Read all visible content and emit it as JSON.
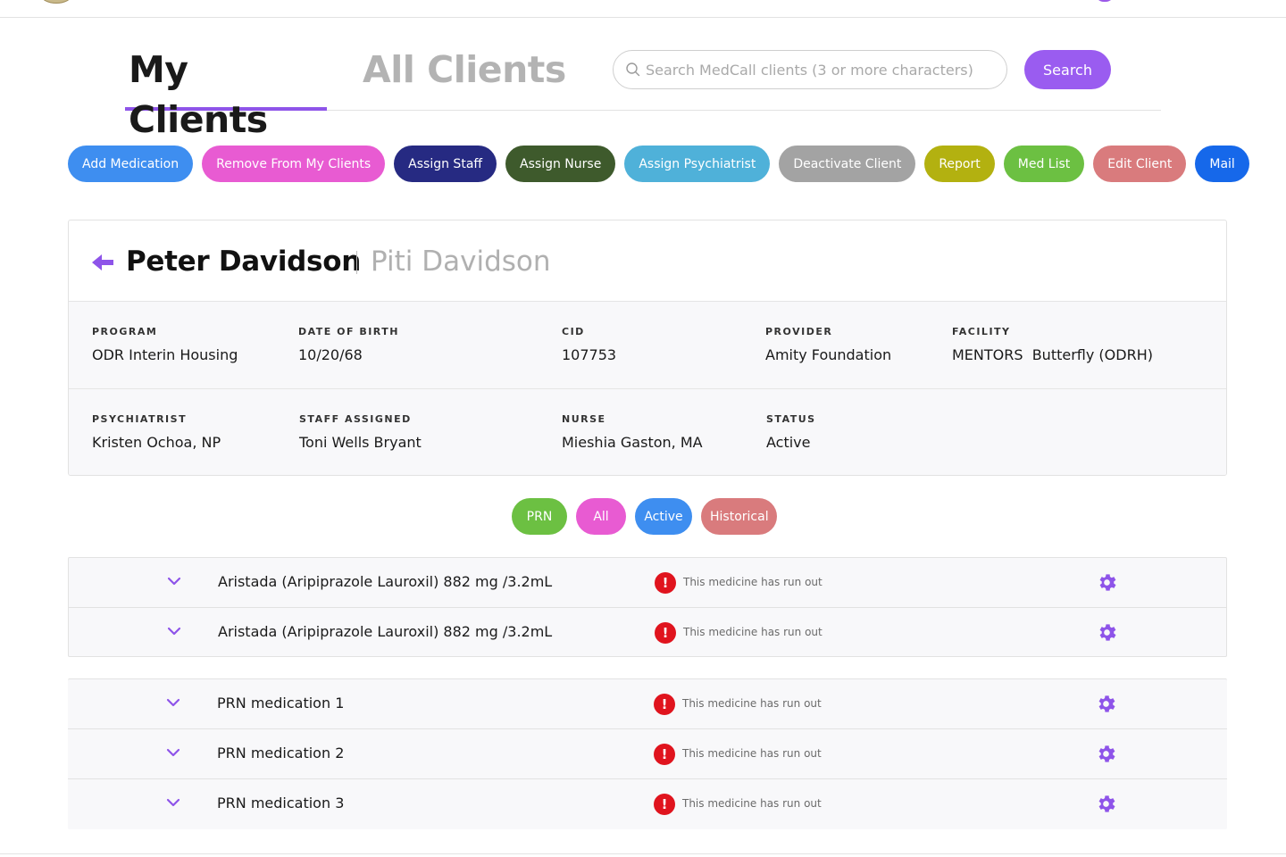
{
  "tabs": {
    "my_clients": "My Clients",
    "all_clients": "All Clients"
  },
  "search": {
    "placeholder": "Search MedCall clients (3 or more characters)",
    "button": "Search"
  },
  "actions": [
    {
      "label": "Add Medication",
      "color": "#3e8ef0"
    },
    {
      "label": "Remove From My Clients",
      "color": "#e85bd2"
    },
    {
      "label": "Assign Staff",
      "color": "#262a82"
    },
    {
      "label": "Assign Nurse",
      "color": "#3e5a2c"
    },
    {
      "label": "Assign Psychiatrist",
      "color": "#4fb1d9"
    },
    {
      "label": "Deactivate Client",
      "color": "#a3a3a3"
    },
    {
      "label": "Report",
      "color": "#b3b110"
    },
    {
      "label": "Med List",
      "color": "#6cc042"
    },
    {
      "label": "Edit Client",
      "color": "#d97b7d"
    },
    {
      "label": "Mail",
      "color": "#1668ea"
    }
  ],
  "client": {
    "name": "Peter Davidson",
    "alias": "Piti Davidson",
    "program_label": "PROGRAM",
    "program": "ODR Interin Housing",
    "dob_label": "DATE OF BIRTH",
    "dob": "10/20/68",
    "cid_label": "CID",
    "cid": "107753",
    "provider_label": "PROVIDER",
    "provider": "Amity Foundation",
    "facility_label": "FACILITY",
    "facility": "MENTORS  Butterfly (ODRH)",
    "psychiatrist_label": "PSYCHIATRIST",
    "psychiatrist": "Kristen Ochoa, NP",
    "staff_label": "STAFF ASSIGNED",
    "staff": "Toni Wells Bryant",
    "nurse_label": "NURSE",
    "nurse": "Mieshia Gaston, MA",
    "status_label": "STATUS",
    "status": "Active"
  },
  "filters": [
    {
      "label": "PRN",
      "color": "#6cc042"
    },
    {
      "label": "All",
      "color": "#e85bd2"
    },
    {
      "label": "Active",
      "color": "#3e8ef0"
    },
    {
      "label": "Historical",
      "color": "#d97b7d"
    }
  ],
  "medications": [
    {
      "name": "Aristada (Aripiprazole Lauroxil) 882 mg /3.2mL",
      "warning": "This medicine has run out"
    },
    {
      "name": "Aristada (Aripiprazole Lauroxil) 882 mg /3.2mL",
      "warning": "This medicine has run out"
    }
  ],
  "prn_medications": [
    {
      "name": "PRN medication 1",
      "warning": "This medicine has run out"
    },
    {
      "name": "PRN medication 2",
      "warning": "This medicine has run out"
    },
    {
      "name": "PRN medication 3",
      "warning": "This medicine has run out"
    }
  ],
  "icons": {
    "accent": "#8e54e9",
    "warning_color": "#e0141e"
  }
}
